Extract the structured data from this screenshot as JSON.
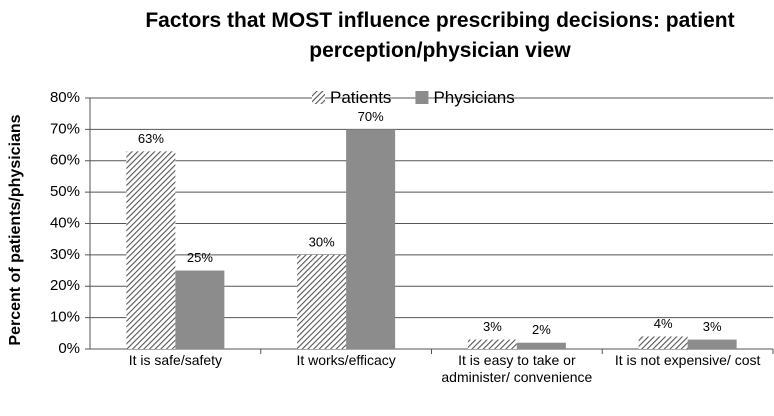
{
  "chart_data": {
    "type": "bar",
    "title": "Factors that MOST influence prescribing decisions: patient perception/physician view",
    "ylabel": "Percent of patients/physicians",
    "categories": [
      "It is safe/safety",
      "It works/efficacy",
      "It is easy to take or administer/ convenience",
      "It is not expensive/ cost"
    ],
    "series": [
      {
        "name": "Patients",
        "color": "#555555",
        "hatch": true,
        "values": [
          63,
          30,
          3,
          4
        ],
        "value_labels": [
          "63%",
          "30%",
          "3%",
          "4%"
        ]
      },
      {
        "name": "Physicians",
        "color": "#8c8c8c",
        "hatch": false,
        "values": [
          25,
          70,
          2,
          3
        ],
        "value_labels": [
          "25%",
          "70%",
          "2%",
          "3%"
        ]
      }
    ],
    "ylim": [
      0,
      80
    ],
    "yticks": [
      {
        "value": 0,
        "label": "0%"
      },
      {
        "value": 10,
        "label": "10%"
      },
      {
        "value": 20,
        "label": "20%"
      },
      {
        "value": 30,
        "label": "30%"
      },
      {
        "value": 40,
        "label": "40%"
      },
      {
        "value": 50,
        "label": "50%"
      },
      {
        "value": 60,
        "label": "60%"
      },
      {
        "value": 70,
        "label": "70%"
      },
      {
        "value": 80,
        "label": "80%"
      }
    ],
    "grid": true,
    "legend": "top"
  }
}
